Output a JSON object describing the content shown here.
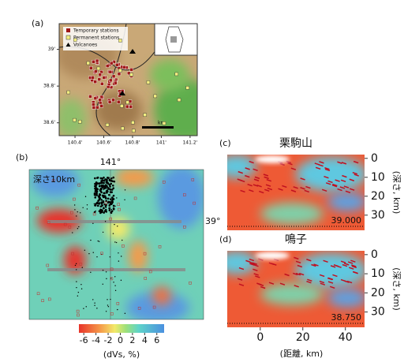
{
  "panel_a": {
    "label": "(a)",
    "legend": [
      "Temporary stations",
      "Permanent stations",
      "Volcanoes"
    ],
    "scale_label": "km",
    "xlim": [
      140.29,
      141.25
    ],
    "xticks": [
      {
        "value": 140.4,
        "label": "140.4'"
      },
      {
        "value": 140.6,
        "label": "140.6'"
      },
      {
        "value": 140.8,
        "label": "140.8'"
      },
      {
        "value": 141,
        "label": "141'"
      },
      {
        "value": 141.2,
        "label": "141.2'"
      }
    ],
    "ylim": [
      38.53,
      39.14
    ],
    "yticks": [
      {
        "value": 39,
        "label": "39'"
      },
      {
        "value": 38.8,
        "label": "38.8'"
      },
      {
        "value": 38.6,
        "label": "38.6'"
      }
    ]
  },
  "panel_b": {
    "label": "(b)",
    "depth_label": "深さ10km",
    "lon_label": "141°",
    "lat_label": "39°",
    "colorbar": {
      "clim": [
        -6.8,
        7.2
      ],
      "ticks": [
        -6,
        -4,
        -2,
        0,
        2,
        4,
        6
      ],
      "label": "(dVs, %)"
    }
  },
  "sections": [
    {
      "label": "(c)",
      "title": "栗駒山",
      "annotation": "39.000"
    },
    {
      "label": "(d)",
      "title": "鳴子",
      "annotation": "38.750"
    }
  ],
  "section_axes": {
    "xlim": [
      -15.5,
      49
    ],
    "xticks": [
      0,
      20,
      40
    ],
    "xlabel": "(距離, km)",
    "ylim": [
      -2,
      38
    ],
    "yticks": [
      0,
      10,
      20,
      30
    ],
    "ylabel": "(深さ, km)"
  }
}
